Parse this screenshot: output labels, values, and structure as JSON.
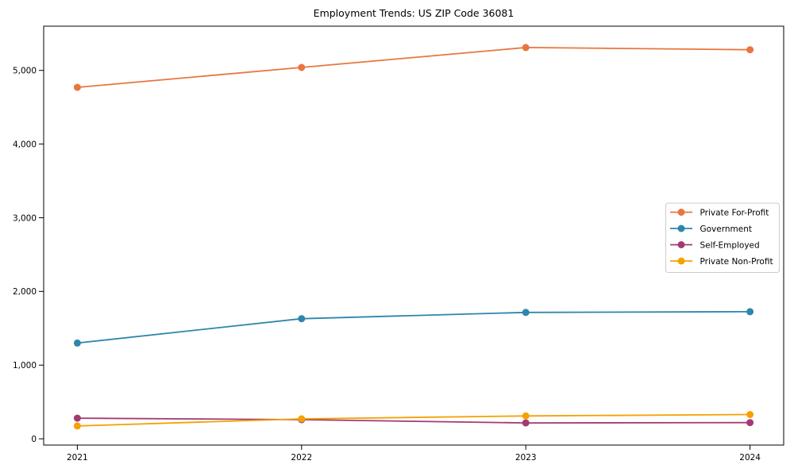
{
  "figure": {
    "background_color": "#ffffff",
    "axes_color": "#000000",
    "legend_border_color": "#cccccc",
    "legend_background": "#ffffff"
  },
  "chart_data": {
    "type": "line",
    "title": "Employment Trends: US ZIP Code 36081",
    "xlabel": "",
    "ylabel": "",
    "categories": [
      "2021",
      "2022",
      "2023",
      "2024"
    ],
    "series": [
      {
        "name": "Private For-Profit",
        "color": "#E8763F",
        "values": [
          4770,
          5040,
          5310,
          5280
        ]
      },
      {
        "name": "Government",
        "color": "#2E86AB",
        "values": [
          1300,
          1630,
          1715,
          1725
        ]
      },
      {
        "name": "Self-Employed",
        "color": "#A23B72",
        "values": [
          280,
          260,
          215,
          220
        ]
      },
      {
        "name": "Private Non-Profit",
        "color": "#F5A100",
        "values": [
          175,
          270,
          310,
          330
        ]
      }
    ],
    "ylim": [
      -85,
      5600
    ],
    "yticks": [
      0,
      1000,
      2000,
      3000,
      4000,
      5000
    ],
    "ytick_labels": [
      "0",
      "1,000",
      "2,000",
      "3,000",
      "4,000",
      "5,000"
    ],
    "grid": false,
    "marker": "circle",
    "legend_position": "center-right",
    "legend_entries": [
      "Private For-Profit",
      "Government",
      "Self-Employed",
      "Private Non-Profit"
    ]
  }
}
